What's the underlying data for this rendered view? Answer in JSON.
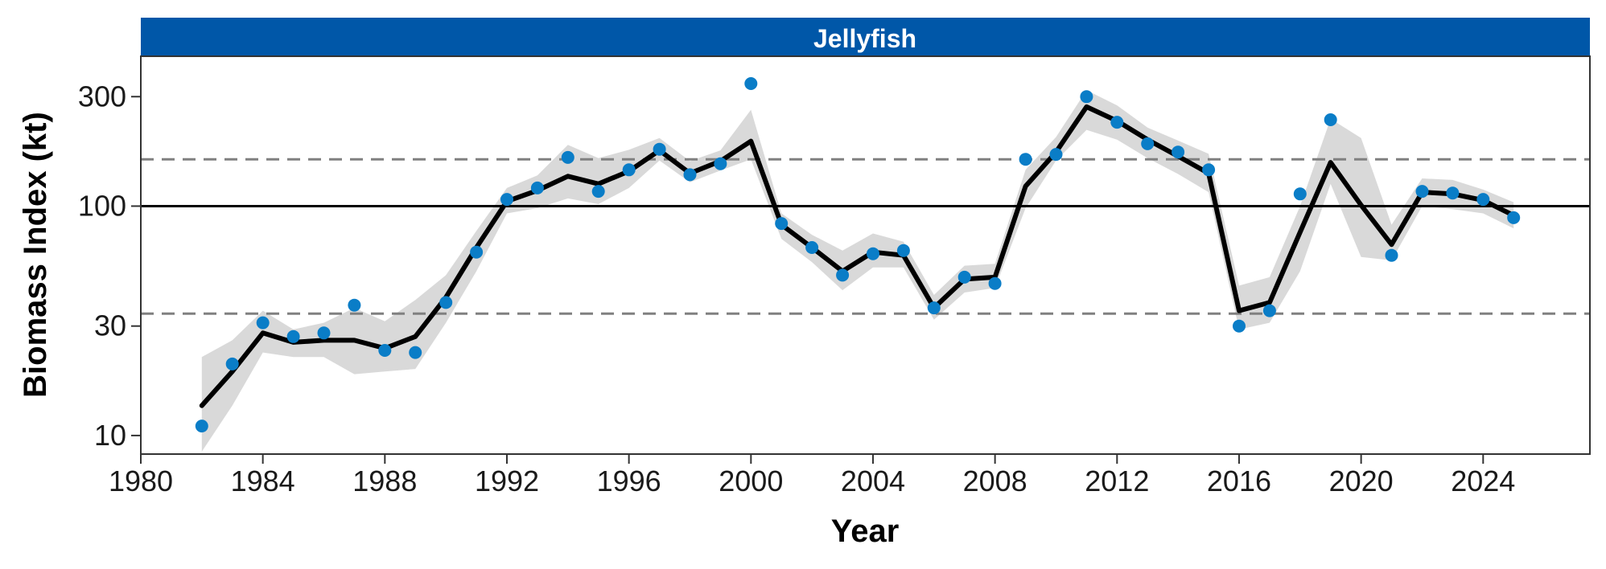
{
  "chart_data": {
    "type": "line",
    "panel_title": "Jellyfish",
    "xlabel": "Year",
    "ylabel": "Biomass Index (kt)",
    "y_scale": "log10",
    "xlim": [
      1980,
      2027.5
    ],
    "ylim": [
      8.3,
      450
    ],
    "x_ticks": [
      1980,
      1984,
      1988,
      1992,
      1996,
      2000,
      2004,
      2008,
      2012,
      2016,
      2020,
      2024
    ],
    "y_ticks": [
      10,
      30,
      100,
      300
    ],
    "reference_lines": [
      {
        "y": 100,
        "style": "solid"
      },
      {
        "y": 160,
        "style": "dashed"
      },
      {
        "y": 34,
        "style": "dashed"
      }
    ],
    "grid": false,
    "colors": {
      "strip": "#0057A8",
      "points": "#0A7DC7",
      "line": "#000000",
      "ribbon": "#D9D9D9",
      "dashed": "#808080"
    },
    "series": [
      {
        "type": "line",
        "x": [
          1982,
          1983,
          1984,
          1985,
          1986,
          1987,
          1988,
          1989,
          1990,
          1991,
          1992,
          1993,
          1994,
          1995,
          1996,
          1997,
          1998,
          1999,
          2000,
          2001,
          2002,
          2003,
          2004,
          2005,
          2006,
          2007,
          2008,
          2009,
          2010,
          2011,
          2012,
          2013,
          2014,
          2015,
          2016,
          2017,
          2018,
          2019,
          2020,
          2021,
          2022,
          2023,
          2024,
          2025
        ],
        "y": [
          13.5,
          19,
          28,
          25.5,
          26,
          26,
          24,
          27,
          40,
          66,
          105,
          117,
          135,
          125,
          142,
          175,
          139,
          157,
          192,
          83,
          66,
          52,
          63,
          61,
          36,
          48,
          49,
          122,
          172,
          271,
          235,
          195,
          165,
          139,
          35,
          38,
          77,
          155,
          101,
          68,
          115,
          113,
          106,
          91
        ],
        "lower": [
          8.5,
          13.5,
          23,
          22,
          22,
          18.5,
          19,
          19.5,
          31,
          52,
          93,
          98,
          108,
          102,
          120,
          158,
          127,
          143,
          160,
          72,
          57,
          43,
          54,
          54,
          32,
          42,
          44,
          98,
          158,
          215,
          195,
          162,
          138,
          115,
          29,
          31,
          52,
          125,
          60,
          58,
          100,
          97,
          93,
          80
        ],
        "upper": [
          22,
          26,
          35,
          29,
          31,
          36,
          31.5,
          39,
          50,
          78,
          120,
          136,
          185,
          162,
          176,
          198,
          157,
          175,
          263,
          93,
          75,
          64,
          76,
          70,
          41,
          55,
          56,
          144,
          200,
          320,
          275,
          220,
          193,
          169,
          45,
          49,
          100,
          240,
          198,
          83,
          132,
          130,
          118,
          104
        ]
      },
      {
        "type": "scatter",
        "x": [
          1982,
          1983,
          1984,
          1985,
          1986,
          1987,
          1988,
          1989,
          1990,
          1991,
          1992,
          1993,
          1994,
          1995,
          1996,
          1997,
          1998,
          1999,
          2000,
          2001,
          2002,
          2003,
          2004,
          2005,
          2006,
          2007,
          2008,
          2009,
          2010,
          2011,
          2012,
          2013,
          2014,
          2015,
          2016,
          2017,
          2018,
          2019,
          2020,
          2021,
          2022,
          2023,
          2024,
          2025
        ],
        "y": [
          11,
          20.5,
          31,
          27,
          28,
          37,
          23.5,
          23,
          38,
          63,
          107,
          120,
          163,
          116,
          144,
          177,
          137,
          153,
          342,
          84,
          66,
          50,
          62,
          64,
          36,
          49,
          46,
          160,
          168,
          300,
          232,
          187,
          172,
          144,
          30,
          35,
          113,
          238,
          null,
          61,
          116,
          114,
          107,
          89
        ]
      }
    ]
  }
}
